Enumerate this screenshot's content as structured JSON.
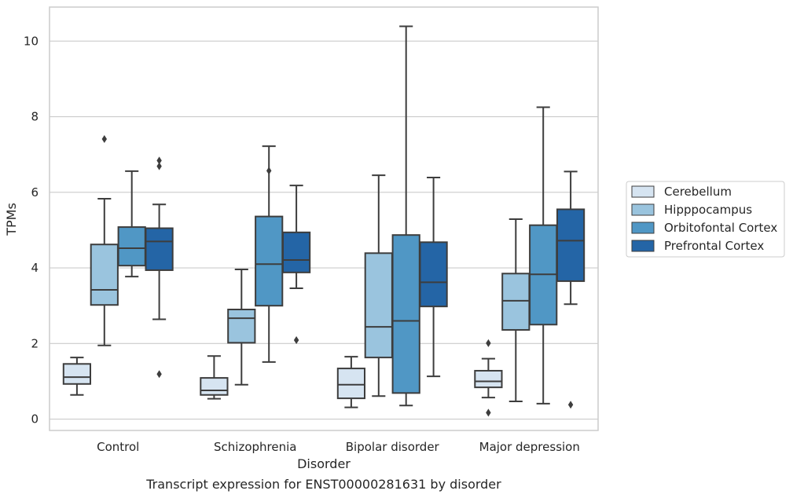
{
  "chart_data": {
    "type": "box",
    "caption": "Transcript expression for ENST00000281631 by disorder",
    "xlabel": "Disorder",
    "ylabel": "TPMs",
    "ylim": [
      -0.3,
      10.9
    ],
    "yticks": [
      0,
      2,
      4,
      6,
      8,
      10
    ],
    "grid": "horizontal",
    "legend_position": "right",
    "categories": [
      "Control",
      "Schizophrenia",
      "Bipolar disorder",
      "Major depression"
    ],
    "series": [
      {
        "name": "Cerebellum",
        "color": "#d6e4f1",
        "boxes": [
          {
            "whislo": 0.64,
            "q1": 0.93,
            "med": 1.11,
            "q3": 1.46,
            "whishi": 1.63,
            "fliers": []
          },
          {
            "whislo": 0.54,
            "q1": 0.64,
            "med": 0.76,
            "q3": 1.09,
            "whishi": 1.67,
            "fliers": []
          },
          {
            "whislo": 0.31,
            "q1": 0.55,
            "med": 0.91,
            "q3": 1.34,
            "whishi": 1.65,
            "fliers": []
          },
          {
            "whislo": 0.57,
            "q1": 0.84,
            "med": 1.0,
            "q3": 1.28,
            "whishi": 1.6,
            "fliers": [
              2.01,
              0.17
            ]
          }
        ]
      },
      {
        "name": "Hipppocampus",
        "color": "#9ac4de",
        "boxes": [
          {
            "whislo": 1.95,
            "q1": 3.02,
            "med": 3.42,
            "q3": 4.62,
            "whishi": 5.83,
            "fliers": [
              7.41
            ]
          },
          {
            "whislo": 0.91,
            "q1": 2.02,
            "med": 2.67,
            "q3": 2.9,
            "whishi": 3.96,
            "fliers": []
          },
          {
            "whislo": 0.61,
            "q1": 1.63,
            "med": 2.44,
            "q3": 4.39,
            "whishi": 6.45,
            "fliers": []
          },
          {
            "whislo": 0.47,
            "q1": 2.36,
            "med": 3.13,
            "q3": 3.85,
            "whishi": 5.29,
            "fliers": []
          }
        ]
      },
      {
        "name": "Orbitofontal Cortex",
        "color": "#5097c5",
        "boxes": [
          {
            "whislo": 3.77,
            "q1": 4.06,
            "med": 4.52,
            "q3": 5.08,
            "whishi": 6.56,
            "fliers": []
          },
          {
            "whislo": 1.51,
            "q1": 3.0,
            "med": 4.1,
            "q3": 5.36,
            "whishi": 7.22,
            "fliers": [
              6.57
            ]
          },
          {
            "whislo": 0.36,
            "q1": 0.69,
            "med": 2.6,
            "q3": 4.87,
            "whishi": 10.39,
            "fliers": []
          },
          {
            "whislo": 0.41,
            "q1": 2.5,
            "med": 3.83,
            "q3": 5.13,
            "whishi": 8.25,
            "fliers": []
          }
        ]
      },
      {
        "name": "Prefrontal Cortex",
        "color": "#2465a6",
        "boxes": [
          {
            "whislo": 2.64,
            "q1": 3.94,
            "med": 4.7,
            "q3": 5.05,
            "whishi": 5.68,
            "fliers": [
              6.84,
              6.69,
              1.19
            ]
          },
          {
            "whislo": 3.46,
            "q1": 3.88,
            "med": 4.21,
            "q3": 4.94,
            "whishi": 6.18,
            "fliers": [
              2.09
            ]
          },
          {
            "whislo": 1.13,
            "q1": 2.98,
            "med": 3.62,
            "q3": 4.68,
            "whishi": 6.39,
            "fliers": []
          },
          {
            "whislo": 3.04,
            "q1": 3.65,
            "med": 4.72,
            "q3": 5.55,
            "whishi": 6.55,
            "fliers": [
              0.38
            ]
          }
        ]
      }
    ]
  }
}
